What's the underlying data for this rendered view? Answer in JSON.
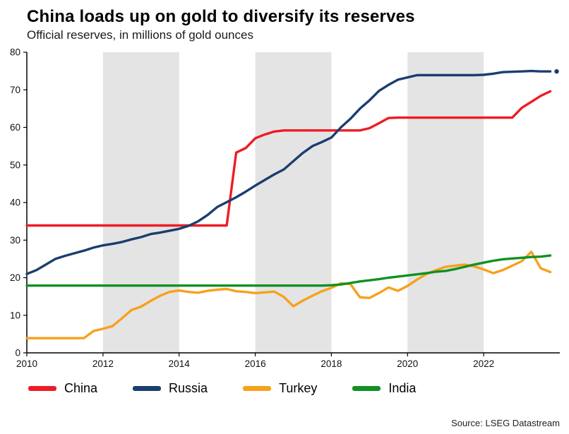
{
  "header": {
    "title": "China loads up on gold to diversify its reserves",
    "subtitle": "Official reserves, in millions of gold ounces"
  },
  "source": "Source: LSEG Datastream",
  "chart_data": {
    "type": "line",
    "title": "China loads up on gold to diversify its reserves",
    "subtitle": "Official reserves, in millions of gold ounces",
    "xlabel": "",
    "ylabel": "",
    "xlim": [
      2010,
      2024
    ],
    "ylim": [
      0,
      80
    ],
    "xticks": [
      2010,
      2012,
      2014,
      2016,
      2018,
      2020,
      2022
    ],
    "yticks": [
      0,
      10,
      20,
      30,
      40,
      50,
      60,
      70,
      80
    ],
    "grid": false,
    "legend_position": "bottom",
    "band_color": "#e4e4e4",
    "shaded_bands": [
      [
        2012,
        2014
      ],
      [
        2016,
        2018
      ],
      [
        2020,
        2022
      ]
    ],
    "x": [
      2010.0,
      2010.25,
      2010.5,
      2010.75,
      2011.0,
      2011.25,
      2011.5,
      2011.75,
      2012.0,
      2012.25,
      2012.5,
      2012.75,
      2013.0,
      2013.25,
      2013.5,
      2013.75,
      2014.0,
      2014.25,
      2014.5,
      2014.75,
      2015.0,
      2015.25,
      2015.5,
      2015.75,
      2016.0,
      2016.25,
      2016.5,
      2016.75,
      2017.0,
      2017.25,
      2017.5,
      2017.75,
      2018.0,
      2018.25,
      2018.5,
      2018.75,
      2019.0,
      2019.25,
      2019.5,
      2019.75,
      2020.0,
      2020.25,
      2020.5,
      2020.75,
      2021.0,
      2021.25,
      2021.5,
      2021.75,
      2022.0,
      2022.25,
      2022.5,
      2022.75,
      2023.0,
      2023.25,
      2023.5,
      2023.75
    ],
    "series": [
      {
        "name": "China",
        "color": "#ed1c24",
        "end_dot": false,
        "values": [
          33.9,
          33.9,
          33.9,
          33.9,
          33.9,
          33.9,
          33.9,
          33.9,
          33.9,
          33.9,
          33.9,
          33.9,
          33.9,
          33.9,
          33.9,
          33.9,
          33.9,
          33.9,
          33.9,
          33.9,
          33.9,
          33.9,
          53.3,
          54.5,
          57.1,
          58.1,
          58.9,
          59.2,
          59.2,
          59.2,
          59.2,
          59.2,
          59.2,
          59.2,
          59.2,
          59.2,
          59.8,
          61.1,
          62.5,
          62.6,
          62.6,
          62.6,
          62.6,
          62.6,
          62.6,
          62.6,
          62.6,
          62.6,
          62.6,
          62.6,
          62.6,
          62.6,
          65.2,
          66.8,
          68.4,
          69.6
        ]
      },
      {
        "name": "Russia",
        "color": "#1a3e6e",
        "end_dot": true,
        "values": [
          21.0,
          22.0,
          23.5,
          25.0,
          25.8,
          26.5,
          27.2,
          28.0,
          28.6,
          29.0,
          29.5,
          30.2,
          30.8,
          31.6,
          32.0,
          32.5,
          33.0,
          33.8,
          35.0,
          36.7,
          38.8,
          40.1,
          41.4,
          42.9,
          44.5,
          46.0,
          47.5,
          48.8,
          51.0,
          53.2,
          55.0,
          56.1,
          57.3,
          60.0,
          62.3,
          65.0,
          67.2,
          69.7,
          71.3,
          72.7,
          73.3,
          73.9,
          73.9,
          73.9,
          73.9,
          73.9,
          73.9,
          73.9,
          74.0,
          74.3,
          74.7,
          74.8,
          74.9,
          75.0,
          74.9,
          74.9
        ]
      },
      {
        "name": "Turkey",
        "color": "#f7a11c",
        "end_dot": false,
        "values": [
          3.9,
          3.9,
          3.9,
          3.9,
          3.9,
          3.9,
          3.9,
          5.8,
          6.4,
          7.1,
          9.2,
          11.4,
          12.3,
          13.8,
          15.2,
          16.2,
          16.6,
          16.2,
          16.0,
          16.5,
          16.8,
          17.0,
          16.4,
          16.2,
          15.9,
          16.1,
          16.3,
          14.9,
          12.4,
          13.9,
          15.2,
          16.4,
          17.3,
          18.5,
          18.3,
          14.8,
          14.6,
          15.9,
          17.4,
          16.5,
          17.8,
          19.5,
          21.0,
          22.0,
          22.9,
          23.2,
          23.5,
          23.0,
          22.2,
          21.2,
          22.0,
          23.2,
          24.4,
          26.9,
          22.5,
          21.5
        ]
      },
      {
        "name": "India",
        "color": "#109122",
        "end_dot": false,
        "values": [
          17.9,
          17.9,
          17.9,
          17.9,
          17.9,
          17.9,
          17.9,
          17.9,
          17.9,
          17.9,
          17.9,
          17.9,
          17.9,
          17.9,
          17.9,
          17.9,
          17.9,
          17.9,
          17.9,
          17.9,
          17.9,
          17.9,
          17.9,
          17.9,
          17.9,
          17.9,
          17.9,
          17.9,
          17.9,
          17.9,
          17.9,
          17.9,
          18.0,
          18.2,
          18.6,
          19.0,
          19.3,
          19.6,
          20.0,
          20.3,
          20.6,
          20.9,
          21.2,
          21.6,
          21.8,
          22.3,
          22.9,
          23.5,
          24.0,
          24.5,
          24.9,
          25.1,
          25.3,
          25.5,
          25.6,
          25.9
        ]
      }
    ]
  }
}
